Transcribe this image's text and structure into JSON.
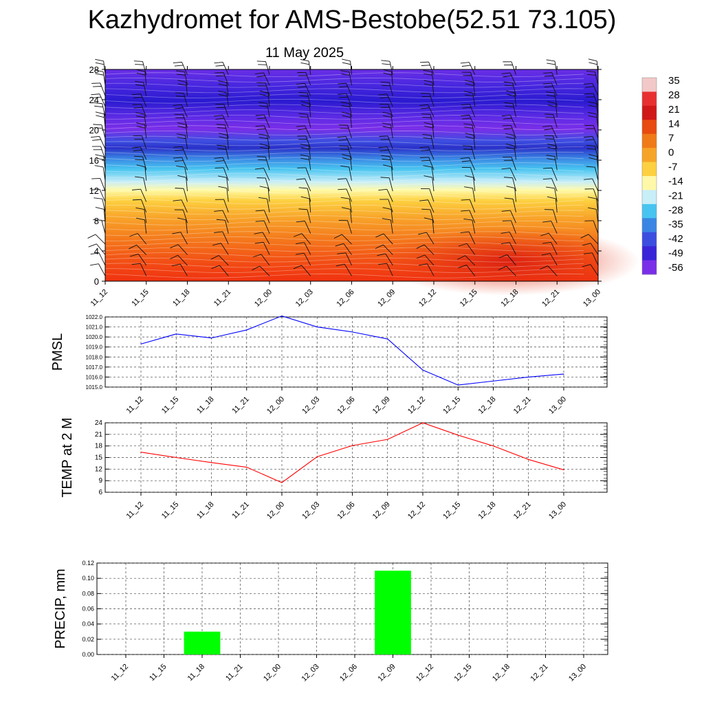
{
  "header": {
    "title": "Kazhydromet for AMS-Bestobe(52.51 73.105)",
    "date": "11 May 2025"
  },
  "chart_data": [
    {
      "type": "heatmap",
      "description_key": "temperature-wind cross section",
      "x_categories": [
        "11_12",
        "11_15",
        "11_18",
        "11_21",
        "12_00",
        "12_03",
        "12_06",
        "12_09",
        "12_12",
        "12_15",
        "12_18",
        "12_21",
        "13_00"
      ],
      "y_ticks": [
        0,
        4,
        8,
        12,
        16,
        20,
        24,
        28
      ],
      "ylim": [
        0,
        28
      ],
      "colorbar": {
        "labels": [
          "35",
          "28",
          "21",
          "14",
          "7",
          "0",
          "-7",
          "-14",
          "-21",
          "-28",
          "-35",
          "-42",
          "-49",
          "-56"
        ],
        "colors": [
          "#f3c8c8",
          "#e83030",
          "#d01818",
          "#e84a10",
          "#f07a18",
          "#f6a428",
          "#fcd040",
          "#fff8a8",
          "#c8eef8",
          "#48c4f0",
          "#3a86e4",
          "#3c4ee0",
          "#3a24d8",
          "#7a2ee8"
        ]
      }
    },
    {
      "type": "line",
      "ylabel": "PMSL",
      "x": [
        "11_12",
        "11_15",
        "11_18",
        "11_21",
        "12_00",
        "12_03",
        "12_06",
        "12_09",
        "12_12",
        "12_15",
        "12_18",
        "12_21",
        "13_00"
      ],
      "y_ticks": [
        "1015.0",
        "1016.0",
        "1017.0",
        "1018.0",
        "1019.0",
        "1020.0",
        "1021.0",
        "1022.0"
      ],
      "ylim": [
        1015,
        1022
      ],
      "series": [
        {
          "values": [
            1019.3,
            1020.3,
            1019.9,
            1020.7,
            1022.1,
            1021.0,
            1020.5,
            1019.8,
            1016.7,
            1015.2,
            1015.6,
            1016.0,
            1016.3
          ],
          "color": "#0000ff"
        }
      ]
    },
    {
      "type": "line",
      "ylabel": "TEMP at 2 M",
      "x": [
        "11_12",
        "11_15",
        "11_18",
        "11_21",
        "12_00",
        "12_03",
        "12_06",
        "12_09",
        "12_12",
        "12_15",
        "12_18",
        "12_21",
        "13_00"
      ],
      "y_ticks": [
        "6",
        "9",
        "12",
        "15",
        "18",
        "21",
        "24"
      ],
      "ylim": [
        6,
        24
      ],
      "series": [
        {
          "values": [
            16.4,
            15.0,
            13.7,
            12.5,
            8.5,
            15.2,
            18.1,
            19.7,
            24.0,
            20.8,
            18.0,
            14.5,
            11.8
          ],
          "color": "#ff0000"
        }
      ]
    },
    {
      "type": "bar",
      "ylabel": "PRECIP, mm",
      "categories": [
        "11_12",
        "11_15",
        "11_18",
        "11_21",
        "12_00",
        "12_03",
        "12_06",
        "12_09",
        "12_12",
        "12_15",
        "12_18",
        "12_21",
        "13_00"
      ],
      "y_ticks": [
        "0.00",
        "0.02",
        "0.04",
        "0.06",
        "0.08",
        "0.10",
        "0.12"
      ],
      "ylim": [
        0,
        0.12
      ],
      "values": [
        0,
        0,
        0.03,
        0,
        0,
        0,
        0,
        0.11,
        0,
        0,
        0,
        0,
        0
      ],
      "bar_color": "#00ff00"
    }
  ]
}
